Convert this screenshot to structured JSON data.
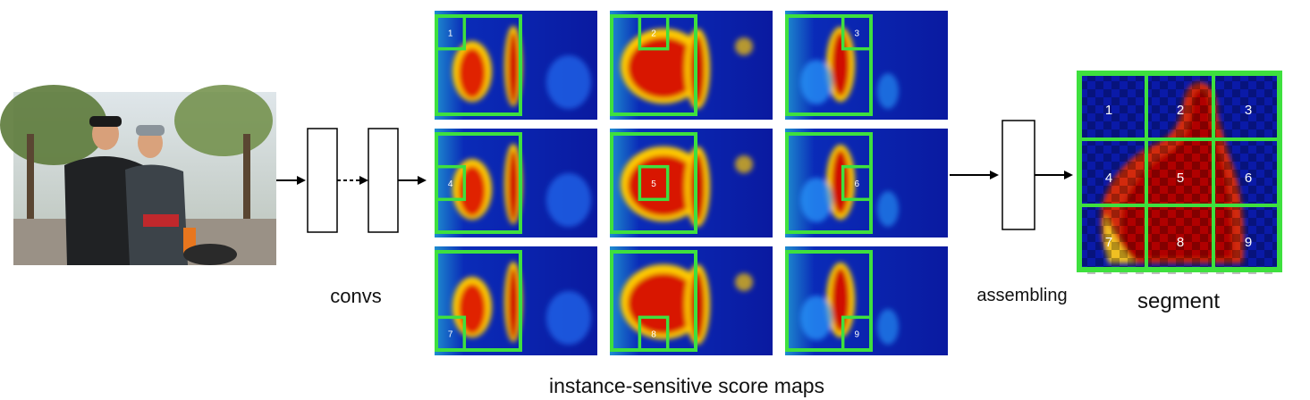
{
  "labels": {
    "convs": "convs",
    "assembling": "assembling",
    "segment": "segment",
    "score_maps": "instance-sensitive score maps"
  },
  "score_map_numbers": [
    "1",
    "2",
    "3",
    "4",
    "5",
    "6",
    "7",
    "8",
    "9"
  ],
  "segment_numbers": [
    "1",
    "2",
    "3",
    "4",
    "5",
    "6",
    "7",
    "8",
    "9"
  ],
  "colors": {
    "box_green": "#3ee03e",
    "heat_blue": "#0a1aa8",
    "heat_red": "#c80000",
    "arrow": "#000000"
  }
}
